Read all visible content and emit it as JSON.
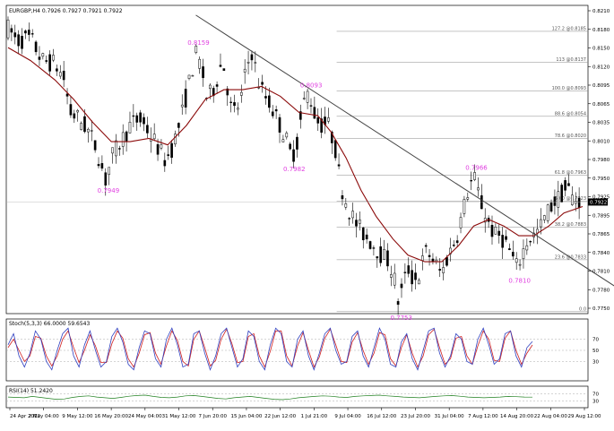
{
  "chart_data": {
    "type": "candlestick",
    "symbol_header": "EURGBP,H4  0.7926 0.7927 0.7921 0.7922",
    "current_price": "0.7922",
    "x_tick_labels": [
      "24 Apr 2012",
      "2 May 04:00",
      "9 May 12:00",
      "16 May 20:00",
      "24 May 04:00",
      "31 May 12:00",
      "7 Jun 20:00",
      "15 Jun 04:00",
      "22 Jun 12:00",
      "1 Jul 21:00",
      "9 Jul 04:00",
      "16 Jul 12:00",
      "23 Jul 20:00",
      "31 Jul 04:00",
      "7 Aug 12:00",
      "14 Aug 20:00",
      "22 Aug 04:00",
      "29 Aug 12:00"
    ],
    "price_axis": {
      "min": 0.775,
      "max": 0.8225,
      "ticks": [
        "0.8210",
        "0.8180",
        "0.8150",
        "0.8120",
        "0.8095",
        "0.8065",
        "0.8035",
        "0.8010",
        "0.7980",
        "0.7950",
        "0.7925",
        "0.7895",
        "0.7865",
        "0.7840",
        "0.7810",
        "0.7780",
        "0.7750"
      ]
    },
    "price_path": [
      [
        0,
        0.819
      ],
      [
        5,
        0.817
      ],
      [
        12,
        0.8175
      ],
      [
        18,
        0.814
      ],
      [
        25,
        0.8135
      ],
      [
        30,
        0.811
      ],
      [
        33,
        0.806
      ],
      [
        38,
        0.805
      ],
      [
        43,
        0.803
      ],
      [
        47,
        0.8005
      ],
      [
        50,
        0.7975
      ],
      [
        52,
        0.7955
      ],
      [
        55,
        0.799
      ],
      [
        60,
        0.8015
      ],
      [
        65,
        0.804
      ],
      [
        70,
        0.805
      ],
      [
        75,
        0.803
      ],
      [
        80,
        0.8005
      ],
      [
        84,
        0.7985
      ],
      [
        88,
        0.801
      ],
      [
        92,
        0.805
      ],
      [
        96,
        0.81
      ],
      [
        100,
        0.815
      ],
      [
        103,
        0.813
      ],
      [
        106,
        0.808
      ],
      [
        110,
        0.81
      ],
      [
        114,
        0.814
      ],
      [
        116,
        0.812
      ],
      [
        118,
        0.807
      ],
      [
        121,
        0.806
      ],
      [
        124,
        0.808
      ],
      [
        127,
        0.813
      ],
      [
        130,
        0.8155
      ],
      [
        133,
        0.811
      ],
      [
        136,
        0.809
      ],
      [
        140,
        0.807
      ],
      [
        144,
        0.8045
      ],
      [
        148,
        0.802
      ],
      [
        151,
        0.799
      ],
      [
        154,
        0.8015
      ],
      [
        157,
        0.807
      ],
      [
        160,
        0.8093
      ],
      [
        163,
        0.806
      ],
      [
        166,
        0.804
      ],
      [
        170,
        0.8045
      ],
      [
        174,
        0.801
      ],
      [
        177,
        0.795
      ],
      [
        181,
        0.7915
      ],
      [
        185,
        0.789
      ],
      [
        190,
        0.787
      ],
      [
        195,
        0.7855
      ],
      [
        199,
        0.784
      ],
      [
        203,
        0.783
      ],
      [
        206,
        0.78
      ],
      [
        208,
        0.7765
      ],
      [
        210,
        0.779
      ],
      [
        213,
        0.782
      ],
      [
        216,
        0.78
      ],
      [
        219,
        0.781
      ],
      [
        222,
        0.7845
      ],
      [
        225,
        0.784
      ],
      [
        228,
        0.7825
      ],
      [
        231,
        0.781
      ],
      [
        233,
        0.783
      ],
      [
        236,
        0.785
      ],
      [
        239,
        0.787
      ],
      [
        242,
        0.7905
      ],
      [
        245,
        0.794
      ],
      [
        248,
        0.7962
      ],
      [
        251,
        0.793
      ],
      [
        253,
        0.791
      ],
      [
        256,
        0.789
      ],
      [
        259,
        0.787
      ],
      [
        262,
        0.787
      ],
      [
        265,
        0.786
      ],
      [
        268,
        0.784
      ],
      [
        271,
        0.782
      ],
      [
        274,
        0.7845
      ],
      [
        277,
        0.7865
      ],
      [
        280,
        0.787
      ],
      [
        283,
        0.788
      ],
      [
        286,
        0.79
      ],
      [
        289,
        0.7915
      ],
      [
        292,
        0.7925
      ],
      [
        295,
        0.7935
      ],
      [
        298,
        0.7945
      ],
      [
        300,
        0.793
      ],
      [
        303,
        0.7925
      ],
      [
        306,
        0.7922
      ]
    ],
    "moving_average": [
      [
        0,
        0.816
      ],
      [
        12,
        0.814
      ],
      [
        25,
        0.811
      ],
      [
        35,
        0.808
      ],
      [
        45,
        0.8045
      ],
      [
        55,
        0.8015
      ],
      [
        65,
        0.8015
      ],
      [
        75,
        0.802
      ],
      [
        85,
        0.801
      ],
      [
        95,
        0.804
      ],
      [
        105,
        0.808
      ],
      [
        115,
        0.8095
      ],
      [
        125,
        0.8095
      ],
      [
        135,
        0.81
      ],
      [
        145,
        0.8085
      ],
      [
        155,
        0.806
      ],
      [
        165,
        0.8055
      ],
      [
        172,
        0.803
      ],
      [
        180,
        0.799
      ],
      [
        188,
        0.794
      ],
      [
        196,
        0.79
      ],
      [
        205,
        0.7865
      ],
      [
        213,
        0.784
      ],
      [
        222,
        0.783
      ],
      [
        231,
        0.783
      ],
      [
        240,
        0.7855
      ],
      [
        248,
        0.7885
      ],
      [
        256,
        0.7895
      ],
      [
        264,
        0.7885
      ],
      [
        272,
        0.787
      ],
      [
        280,
        0.787
      ],
      [
        288,
        0.7885
      ],
      [
        296,
        0.7905
      ],
      [
        306,
        0.7915
      ]
    ],
    "annotations": [
      {
        "label": "0.8159",
        "x": 100,
        "price": 0.8159
      },
      {
        "label": "0.8093",
        "x": 160,
        "price": 0.8093
      },
      {
        "label": "0.7949",
        "x": 52,
        "price": 0.7949
      },
      {
        "label": "0.7982",
        "x": 151,
        "price": 0.7982
      },
      {
        "label": "0.7966",
        "x": 248,
        "price": 0.7966
      },
      {
        "label": "0.7810",
        "x": 271,
        "price": 0.781
      },
      {
        "label": "0.7753",
        "x": 208,
        "price": 0.7753
      }
    ],
    "trendline": {
      "x1": 100,
      "p1": 0.821,
      "x2": 335,
      "p2": 0.777
    },
    "fibonacci": [
      {
        "label": "127.2 @0.8185",
        "price": 0.8185
      },
      {
        "label": "113 @0.8137",
        "price": 0.8137
      },
      {
        "label": "100.0 @0.8093",
        "price": 0.8093
      },
      {
        "label": "88.6 @0.8054",
        "price": 0.8054
      },
      {
        "label": "78.6 @0.8020",
        "price": 0.802
      },
      {
        "label": "61.8 @0.7963",
        "price": 0.7963
      },
      {
        "label": "50.0 @0.7923",
        "price": 0.7923
      },
      {
        "label": "38.2 @0.7883",
        "price": 0.7883
      },
      {
        "label": "23.6 @0.7833",
        "price": 0.7833
      },
      {
        "label": "0.0",
        "price": 0.7753
      }
    ],
    "stochastic": {
      "header": "Stoch(5,3,3) 66.0000 59.6543",
      "range": [
        0,
        100
      ],
      "ticks": [
        "70",
        "50",
        "30"
      ],
      "k": [
        60,
        80,
        40,
        20,
        45,
        85,
        70,
        30,
        15,
        50,
        80,
        90,
        40,
        20,
        60,
        85,
        50,
        20,
        30,
        75,
        90,
        65,
        25,
        15,
        55,
        85,
        80,
        35,
        20,
        70,
        90,
        60,
        20,
        25,
        80,
        85,
        45,
        15,
        40,
        80,
        90,
        55,
        20,
        35,
        85,
        75,
        30,
        15,
        60,
        90,
        80,
        30,
        20,
        70,
        85,
        40,
        15,
        45,
        80,
        90,
        50,
        25,
        30,
        75,
        85,
        40,
        20,
        55,
        90,
        70,
        25,
        20,
        65,
        80,
        35,
        15,
        50,
        85,
        90,
        45,
        20,
        40,
        80,
        70,
        30,
        25,
        70,
        90,
        60,
        25,
        35,
        80,
        85,
        40,
        20,
        55,
        66
      ],
      "d": [
        55,
        70,
        50,
        30,
        40,
        75,
        72,
        40,
        22,
        40,
        70,
        85,
        55,
        28,
        50,
        78,
        58,
        28,
        28,
        62,
        85,
        72,
        35,
        20,
        45,
        78,
        82,
        45,
        25,
        58,
        85,
        68,
        30,
        22,
        70,
        85,
        55,
        22,
        32,
        70,
        88,
        62,
        28,
        30,
        75,
        80,
        40,
        20,
        48,
        85,
        85,
        40,
        22,
        58,
        82,
        50,
        20,
        38,
        72,
        88,
        60,
        30,
        28,
        65,
        82,
        50,
        25,
        45,
        82,
        78,
        35,
        22,
        55,
        78,
        45,
        20,
        40,
        78,
        88,
        55,
        25,
        35,
        72,
        75,
        40,
        25,
        58,
        85,
        70,
        32,
        30,
        72,
        85,
        50,
        25,
        45,
        59.6543
      ]
    },
    "rsi": {
      "header": "RSI(14) 51.2420",
      "range": [
        0,
        100
      ],
      "ticks": [
        "70",
        "30"
      ],
      "values": [
        52,
        50,
        48,
        55,
        50,
        45,
        40,
        42,
        50,
        55,
        58,
        52,
        48,
        45,
        50,
        56,
        60,
        62,
        55,
        50,
        48,
        52,
        58,
        60,
        55,
        50,
        45,
        42,
        48,
        52,
        55,
        50,
        45,
        40,
        38,
        42,
        48,
        52,
        55,
        58,
        56,
        52,
        50,
        55,
        58,
        60,
        62,
        58,
        55,
        52,
        50,
        48,
        52,
        55,
        58,
        60,
        56,
        52,
        50,
        48,
        50,
        52,
        55,
        54,
        52,
        51.242
      ]
    }
  }
}
